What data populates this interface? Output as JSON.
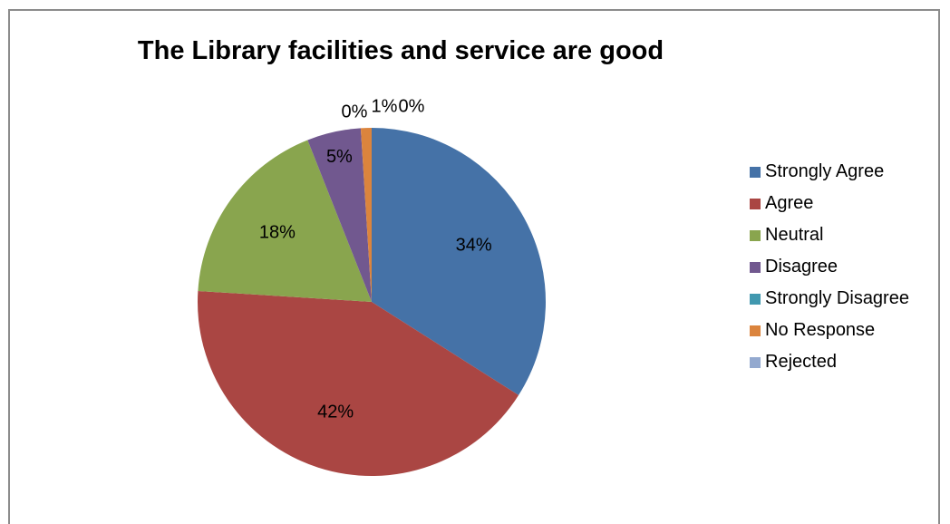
{
  "chart_data": {
    "type": "pie",
    "title": "The Library facilities and service are good",
    "legend_position": "right",
    "categories": [
      "Strongly Agree",
      "Agree",
      "Neutral",
      "Disagree",
      "Strongly Disagree",
      "No Response",
      "Rejected"
    ],
    "values": [
      34,
      42,
      18,
      5,
      0,
      1,
      0
    ],
    "data_labels": [
      "34%",
      "42%",
      "18%",
      "5%",
      "0%",
      "1%",
      "0%"
    ],
    "colors": [
      "#4572A7",
      "#AA4643",
      "#89A54E",
      "#71588F",
      "#4198AF",
      "#DB843D",
      "#93A9CF"
    ]
  }
}
